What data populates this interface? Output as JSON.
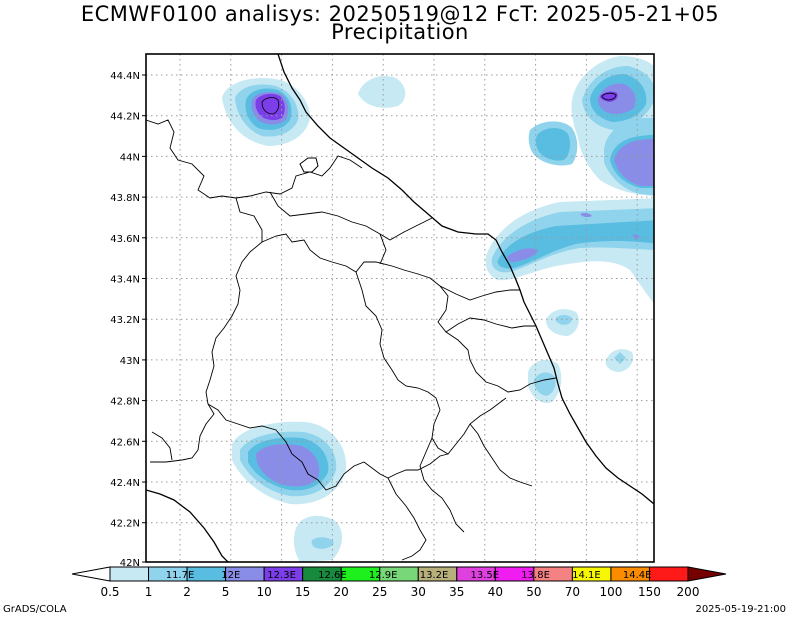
{
  "title": {
    "line1": "ECMWF0100 analisys: 20250519@12 FcT: 2025-05-21+05",
    "line2": "Precipitation"
  },
  "map": {
    "lat_labels": [
      "44.4N",
      "44.2N",
      "44N",
      "43.8N",
      "43.6N",
      "43.4N",
      "43.2N",
      "43N",
      "42.8N",
      "42.6N",
      "42.4N",
      "42.2N",
      "42N"
    ],
    "lon_labels": [
      "11.7E",
      "12E",
      "12.3E",
      "12.6E",
      "12.9E",
      "13.2E",
      "13.5E",
      "13.8E",
      "14.1E",
      "14.4E"
    ],
    "grid": true,
    "colors": {
      "coast": "#000000",
      "border": "#000000",
      "grid": "#9a9a9a"
    }
  },
  "colorbar": {
    "values": [
      "0.5",
      "1",
      "2",
      "5",
      "10",
      "15",
      "20",
      "25",
      "30",
      "35",
      "40",
      "50",
      "70",
      "100",
      "150",
      "200"
    ],
    "colors": [
      "#ffffff",
      "#c7e9f3",
      "#8fd3ec",
      "#58bde0",
      "#8a8de8",
      "#7b3ee8",
      "#178a3e",
      "#1ef01e",
      "#78d778",
      "#b7b07a",
      "#e040e0",
      "#f01df0",
      "#f58282",
      "#f7f700",
      "#fb8c00",
      "#ff1a1a",
      "#760000"
    ]
  },
  "footer": {
    "left": "GrADS/COLA",
    "right": "2025-05-19-21:00"
  }
}
